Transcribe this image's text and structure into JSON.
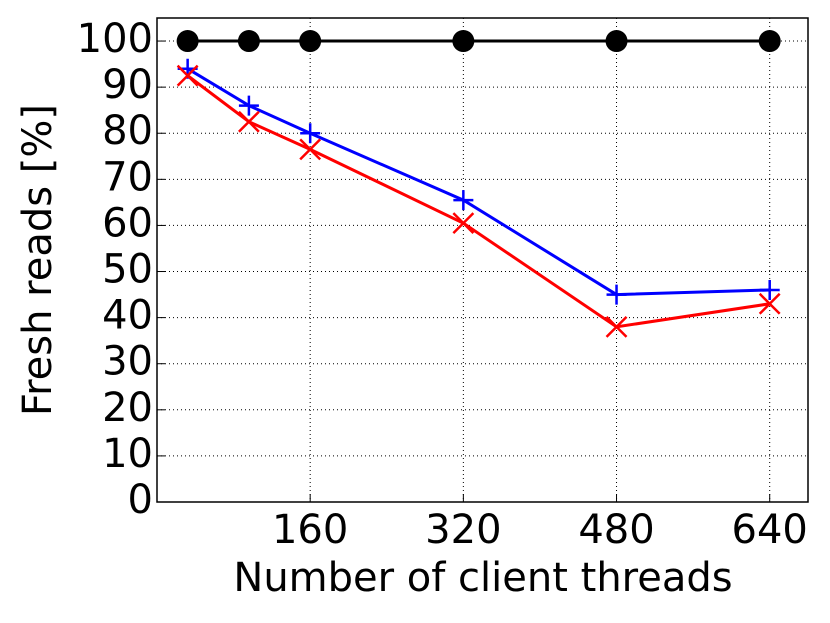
{
  "chart_data": {
    "type": "line",
    "x_label": "Number of client threads",
    "y_label": "Fresh reads [%]",
    "x": [
      32,
      96,
      160,
      320,
      480,
      640
    ],
    "series": [
      {
        "color": "#000000",
        "marker": "o",
        "values": [
          100,
          100,
          100,
          100,
          100,
          100
        ]
      },
      {
        "color": "#0000ff",
        "marker": "+",
        "values": [
          94,
          86,
          80,
          65.5,
          45,
          46
        ]
      },
      {
        "color": "#ff0000",
        "marker": "x",
        "values": [
          92.5,
          82.5,
          76.5,
          60.5,
          38,
          43
        ]
      }
    ],
    "xlim": [
      0,
      680
    ],
    "ylim": [
      0,
      105
    ],
    "xticks": [
      160,
      320,
      480,
      640
    ],
    "yticks": [
      0,
      10,
      20,
      30,
      40,
      50,
      60,
      70,
      80,
      90,
      100
    ],
    "grid": true
  }
}
